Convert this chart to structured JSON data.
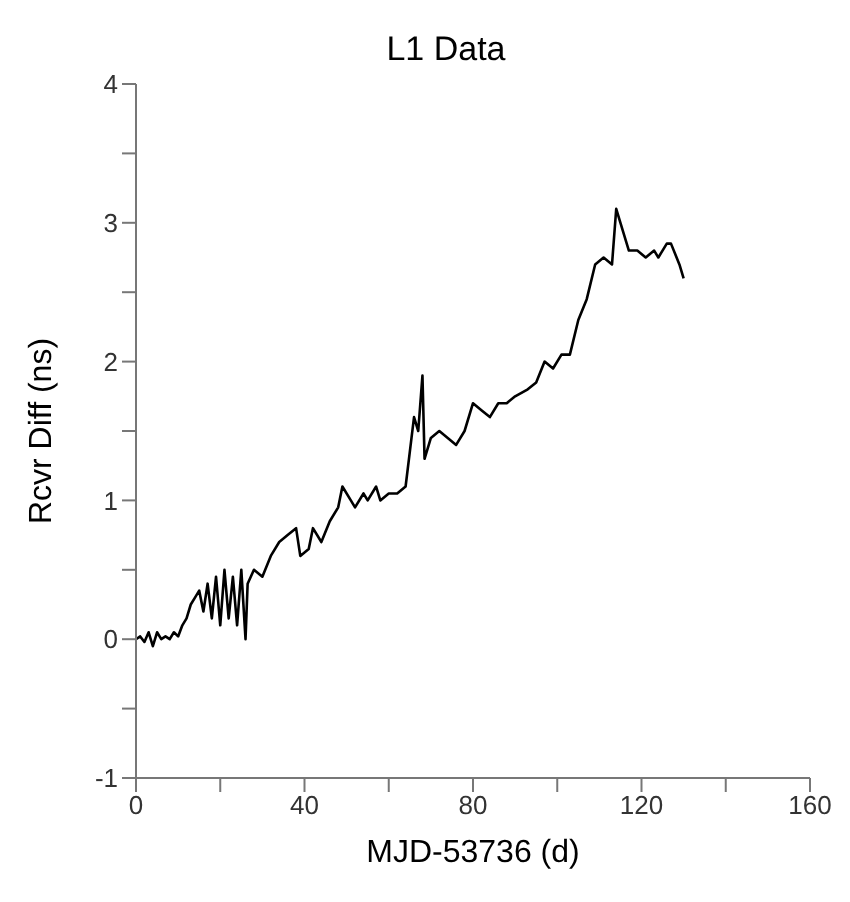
{
  "chart_data": {
    "type": "line",
    "title": "L1 Data",
    "xlabel": "MJD-53736 (d)",
    "ylabel": "Rcvr Diff (ns)",
    "xlim": [
      0,
      160
    ],
    "ylim": [
      -1,
      4
    ],
    "xticks": [
      0,
      {
        "value": 20,
        "label": null
      },
      40,
      {
        "value": 60,
        "label": null
      },
      80,
      {
        "value": 100,
        "label": null
      },
      120,
      {
        "value": 140,
        "label": null
      },
      160
    ],
    "yticks": [
      -1,
      {
        "value": -0.5,
        "label": null
      },
      0,
      {
        "value": 0.5,
        "label": null
      },
      1,
      {
        "value": 1.5,
        "label": null
      },
      2,
      {
        "value": 2.5,
        "label": null
      },
      3,
      {
        "value": 3.5,
        "label": null
      },
      4
    ],
    "grid": false,
    "legend": false,
    "marker": "none",
    "line_style": "solid",
    "series": [
      {
        "color": "#000000",
        "x": [
          0,
          1,
          2,
          3,
          4,
          5,
          6,
          7,
          8,
          9,
          10,
          11,
          12,
          13,
          14,
          15,
          16,
          17,
          18,
          19,
          20,
          21,
          22,
          23,
          24,
          25,
          26,
          26.5,
          28,
          30,
          32,
          34,
          36,
          38,
          39,
          41,
          42,
          44,
          46,
          48,
          49,
          51,
          52,
          54,
          55,
          57,
          58,
          60,
          62,
          64,
          65,
          66,
          67,
          68,
          68.5,
          70,
          72,
          74,
          76,
          78,
          80,
          82,
          84,
          86,
          88,
          90,
          93,
          95,
          97,
          99,
          101,
          103,
          105,
          107,
          109,
          111,
          113,
          114,
          115,
          117,
          119,
          121,
          123,
          124,
          126,
          127,
          129,
          130
        ],
        "values": [
          0,
          0.02,
          -0.02,
          0.05,
          -0.05,
          0.05,
          0,
          0.02,
          0,
          0.05,
          0.02,
          0.1,
          0.15,
          0.25,
          0.3,
          0.35,
          0.2,
          0.4,
          0.15,
          0.45,
          0.1,
          0.5,
          0.15,
          0.45,
          0.1,
          0.5,
          0,
          0.4,
          0.5,
          0.45,
          0.6,
          0.7,
          0.75,
          0.8,
          0.6,
          0.65,
          0.8,
          0.7,
          0.85,
          0.95,
          1.1,
          1,
          0.95,
          1.05,
          1,
          1.1,
          1,
          1.05,
          1.05,
          1.1,
          1.35,
          1.6,
          1.5,
          1.9,
          1.3,
          1.45,
          1.5,
          1.45,
          1.4,
          1.5,
          1.7,
          1.65,
          1.6,
          1.7,
          1.7,
          1.75,
          1.8,
          1.85,
          2,
          1.95,
          2.05,
          2.05,
          2.3,
          2.45,
          2.7,
          2.75,
          2.7,
          3.1,
          3,
          2.8,
          2.8,
          2.75,
          2.8,
          2.75,
          2.85,
          2.85,
          2.7,
          2.6
        ]
      }
    ]
  }
}
